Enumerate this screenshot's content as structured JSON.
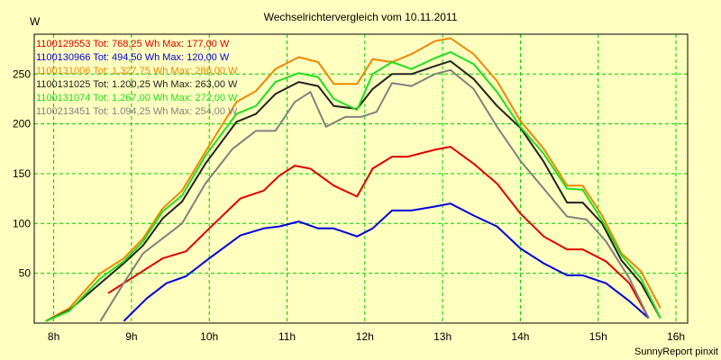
{
  "chart_data": {
    "type": "line",
    "title": "Wechselrichtervergleich vom 10.11.2011",
    "ylabel": "W",
    "xlabel": "",
    "footer": "SunnyReport pinxit",
    "ylim": [
      0,
      290
    ],
    "xlim": [
      7.75,
      16.15
    ],
    "yticks": [
      50,
      100,
      150,
      200,
      250
    ],
    "xticks": [
      {
        "value": 8,
        "label": "8h"
      },
      {
        "value": 9,
        "label": "9h"
      },
      {
        "value": 10,
        "label": "10h"
      },
      {
        "value": 11,
        "label": "11h"
      },
      {
        "value": 12,
        "label": "12h"
      },
      {
        "value": 13,
        "label": "13h"
      },
      {
        "value": 14,
        "label": "14h"
      },
      {
        "value": 15,
        "label": "15h"
      },
      {
        "value": 16,
        "label": "16h"
      }
    ],
    "grid": true,
    "series": [
      {
        "name": "1100129553 Tot: 768,25 Wh Max: 177,00 W",
        "color": "#dd0000",
        "x": [
          8.7,
          9.0,
          9.4,
          9.7,
          10.0,
          10.4,
          10.7,
          10.9,
          11.1,
          11.3,
          11.6,
          11.9,
          12.1,
          12.35,
          12.55,
          12.9,
          13.1,
          13.4,
          13.7,
          14.0,
          14.3,
          14.6,
          14.8,
          15.1,
          15.4,
          15.65
        ],
        "values": [
          30,
          45,
          65,
          72,
          95,
          125,
          133,
          148,
          158,
          155,
          138,
          127,
          155,
          167,
          167,
          174,
          177,
          160,
          140,
          110,
          87,
          74,
          74,
          62,
          40,
          5
        ]
      },
      {
        "name": "1100130966 Tot: 494,50 Wh Max: 120,00 W",
        "color": "#0000dd",
        "x": [
          8.9,
          9.2,
          9.45,
          9.7,
          10.0,
          10.4,
          10.7,
          10.9,
          11.15,
          11.4,
          11.6,
          11.9,
          12.1,
          12.35,
          12.6,
          12.9,
          13.1,
          13.4,
          13.7,
          14.0,
          14.3,
          14.6,
          14.8,
          15.1,
          15.4,
          15.65
        ],
        "values": [
          2,
          25,
          40,
          47,
          65,
          88,
          95,
          97,
          102,
          95,
          95,
          87,
          95,
          113,
          113,
          117,
          120,
          108,
          97,
          75,
          60,
          48,
          48,
          40,
          22,
          5
        ]
      },
      {
        "name": "1100131006 Tot: 1.327,75 Wh Max: 286,00 W",
        "color": "#ee8800",
        "x": [
          7.9,
          8.2,
          8.6,
          8.9,
          9.15,
          9.4,
          9.65,
          9.95,
          10.35,
          10.6,
          10.85,
          11.15,
          11.4,
          11.6,
          11.9,
          12.1,
          12.35,
          12.6,
          12.9,
          13.1,
          13.4,
          13.7,
          14.0,
          14.3,
          14.6,
          14.8,
          15.05,
          15.3,
          15.55,
          15.8
        ],
        "values": [
          2,
          15,
          50,
          65,
          85,
          115,
          133,
          172,
          222,
          233,
          255,
          267,
          262,
          240,
          240,
          265,
          262,
          270,
          283,
          286,
          270,
          243,
          203,
          175,
          138,
          138,
          108,
          70,
          52,
          15
        ]
      },
      {
        "name": "1100131025 Tot: 1.200,25 Wh Max: 263,00 W",
        "color": "#222222",
        "x": [
          7.9,
          8.2,
          8.6,
          8.9,
          9.15,
          9.4,
          9.65,
          9.95,
          10.35,
          10.6,
          10.85,
          11.15,
          11.4,
          11.6,
          11.9,
          12.1,
          12.35,
          12.6,
          12.9,
          13.1,
          13.4,
          13.7,
          14.0,
          14.3,
          14.6,
          14.8,
          15.05,
          15.3,
          15.55,
          15.8
        ],
        "values": [
          2,
          13,
          40,
          60,
          78,
          105,
          122,
          160,
          202,
          210,
          230,
          242,
          238,
          218,
          215,
          235,
          250,
          250,
          258,
          263,
          245,
          218,
          196,
          162,
          121,
          121,
          100,
          63,
          40,
          5
        ]
      },
      {
        "name": "1100131074 Tot: 1.267,00 Wh Max: 272,00 W",
        "color": "#22dd22",
        "x": [
          7.9,
          8.2,
          8.6,
          8.9,
          9.15,
          9.4,
          9.65,
          9.95,
          10.35,
          10.6,
          10.85,
          11.15,
          11.4,
          11.6,
          11.9,
          12.1,
          12.35,
          12.6,
          12.9,
          13.1,
          13.4,
          13.7,
          14.0,
          14.3,
          14.6,
          14.8,
          15.05,
          15.3,
          15.55,
          15.8
        ],
        "values": [
          2,
          12,
          45,
          62,
          82,
          112,
          128,
          168,
          210,
          218,
          242,
          251,
          247,
          225,
          214,
          250,
          262,
          255,
          266,
          272,
          260,
          232,
          197,
          170,
          135,
          134,
          103,
          68,
          45,
          5
        ]
      },
      {
        "name": "1100213451 Tot: 1.094,25 Wh Max: 254,00 W",
        "color": "#808080",
        "x": [
          8.6,
          8.9,
          9.15,
          9.4,
          9.65,
          9.95,
          10.3,
          10.6,
          10.85,
          11.1,
          11.3,
          11.5,
          11.75,
          11.95,
          12.15,
          12.35,
          12.6,
          12.9,
          13.1,
          13.4,
          13.7,
          14.0,
          14.3,
          14.6,
          14.85,
          15.1,
          15.4,
          15.65
        ],
        "values": [
          2,
          40,
          70,
          85,
          100,
          140,
          175,
          193,
          193,
          222,
          232,
          197,
          207,
          207,
          212,
          241,
          238,
          250,
          254,
          235,
          197,
          163,
          135,
          107,
          104,
          82,
          45,
          5
        ]
      }
    ]
  }
}
